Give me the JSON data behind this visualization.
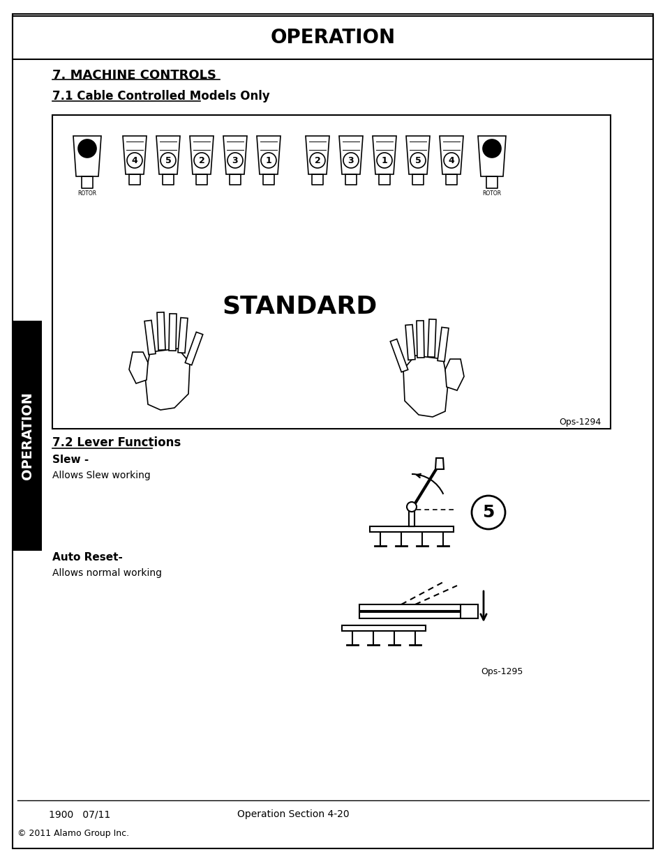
{
  "page_bg": "#ffffff",
  "outer_border_color": "#000000",
  "header_title": "OPERATION",
  "section1_title": "7. MACHINE CONTROLS",
  "section1_sub": "7.1 Cable Controlled Models Only",
  "image1_label": "Ops-1294",
  "image1_caption": "STANDARD",
  "section2_title": "7.2 Lever Functions",
  "slew_bold": "Slew -",
  "slew_text": "Allows Slew working",
  "autoreset_bold": "Auto Reset-",
  "autoreset_text": "Allows normal working",
  "image2_label": "Ops-1295",
  "footer_left": "1900   07/11",
  "footer_center": "Operation Section 4-20",
  "copyright": "© 2011 Alamo Group Inc.",
  "side_tab_text": "OPERATION",
  "side_tab_bg": "#000000",
  "side_tab_color": "#ffffff",
  "left_labels": [
    4,
    5,
    2,
    3,
    1
  ],
  "right_labels": [
    2,
    3,
    1,
    5,
    4
  ]
}
